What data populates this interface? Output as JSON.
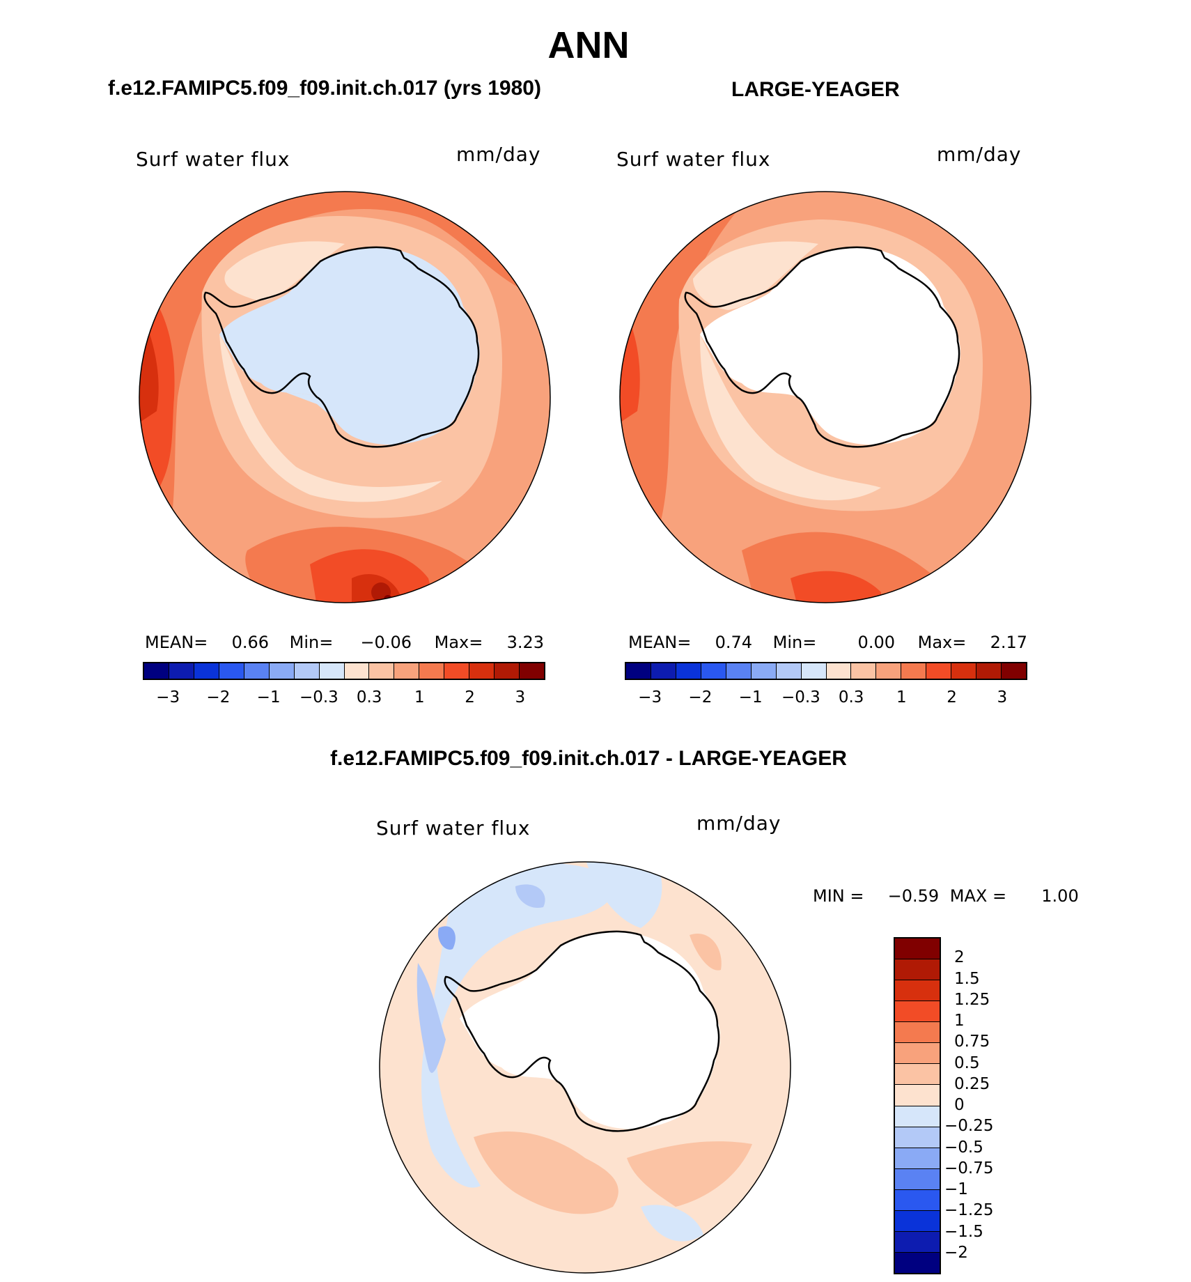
{
  "title": "ANN",
  "panel_left": {
    "heading": "f.e12.FAMIPC5.f09_f09.init.ch.017 (yrs 1980)",
    "variable": "Surf  water  flux",
    "units": "mm/day",
    "stats": {
      "mean_label": "MEAN=",
      "mean": "0.66",
      "min_label": "Min=",
      "min": "−0.06",
      "max_label": "Max=",
      "max": "3.23"
    }
  },
  "panel_right": {
    "heading": "LARGE-YEAGER",
    "variable": "Surf  water  flux",
    "units": "mm/day",
    "stats": {
      "mean_label": "MEAN=",
      "mean": "0.74",
      "min_label": "Min=",
      "min": "0.00",
      "max_label": "Max=",
      "max": "2.17"
    }
  },
  "panel_diff": {
    "heading": "f.e12.FAMIPC5.f09_f09.init.ch.017 - LARGE-YEAGER",
    "variable": "Surf  water  flux",
    "units": "mm/day",
    "minmax": {
      "min_label": "MIN  =",
      "min": "−0.59",
      "max_label": "MAX  =",
      "max": "1.00"
    }
  },
  "colorbar_top": {
    "ticks": [
      "−3",
      "−2",
      "−1",
      "−0.3",
      "0.3",
      "1",
      "2",
      "3"
    ],
    "colors": [
      "#000080",
      "#0d1cb0",
      "#0a33d9",
      "#2a58f0",
      "#5a82f3",
      "#8aaaf5",
      "#b3c9f7",
      "#d6e6fa",
      "#fde2cf",
      "#fbc3a4",
      "#f8a27c",
      "#f47a4f",
      "#f24c26",
      "#d7300e",
      "#b01a05",
      "#800000"
    ]
  },
  "colorbar_diff": {
    "ticks": [
      "2",
      "1.5",
      "1.25",
      "1",
      "0.75",
      "0.5",
      "0.25",
      "0",
      "−0.25",
      "−0.5",
      "−0.75",
      "−1",
      "−1.25",
      "−1.5",
      "−2"
    ],
    "colors": [
      "#800000",
      "#b01a05",
      "#d7300e",
      "#f24c26",
      "#f47a4f",
      "#f8a27c",
      "#fbc3a4",
      "#fde2cf",
      "#d6e6fa",
      "#b3c9f7",
      "#8aaaf5",
      "#5a82f3",
      "#2a58f0",
      "#0a33d9",
      "#0d1cb0",
      "#000080"
    ]
  },
  "colors": {
    "land_model": "#d6e6fa",
    "land_obs": "#ffffff",
    "coast": "#000000"
  }
}
